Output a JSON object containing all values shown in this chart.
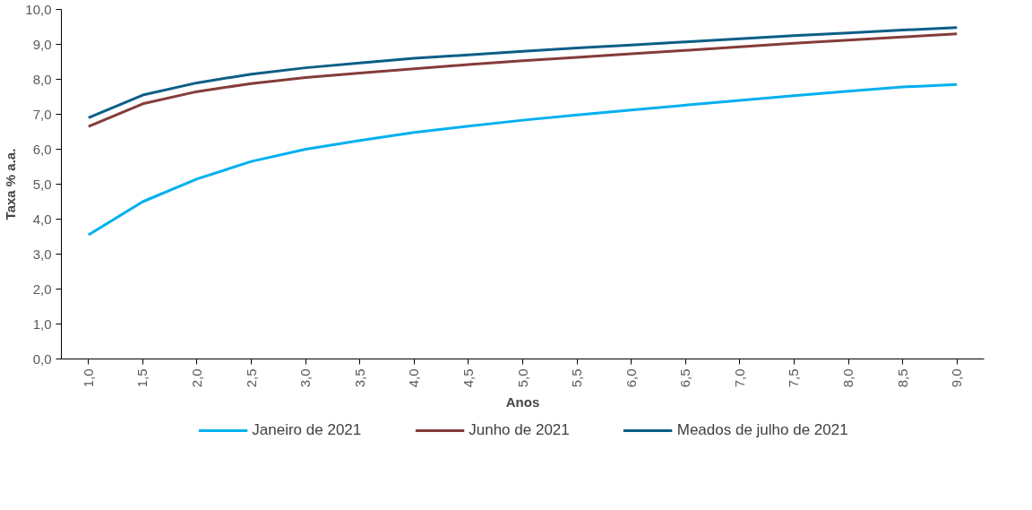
{
  "chart_data": {
    "type": "line",
    "xlabel": "Anos",
    "ylabel": "Taxa % a.a.",
    "x": [
      1.0,
      1.5,
      2.0,
      2.5,
      3.0,
      3.5,
      4.0,
      4.5,
      5.0,
      5.5,
      6.0,
      6.5,
      7.0,
      7.5,
      8.0,
      8.5,
      9.0
    ],
    "xlim": [
      0.75,
      9.25
    ],
    "xticks": [
      {
        "value": 1.0,
        "label": "1,0"
      },
      {
        "value": 1.5,
        "label": "1,5"
      },
      {
        "value": 2.0,
        "label": "2,0"
      },
      {
        "value": 2.5,
        "label": "2,5"
      },
      {
        "value": 3.0,
        "label": "3,0"
      },
      {
        "value": 3.5,
        "label": "3,5"
      },
      {
        "value": 4.0,
        "label": "4,0"
      },
      {
        "value": 4.5,
        "label": "4,5"
      },
      {
        "value": 5.0,
        "label": "5,0"
      },
      {
        "value": 5.5,
        "label": "5,5"
      },
      {
        "value": 6.0,
        "label": "6,0"
      },
      {
        "value": 6.5,
        "label": "6,5"
      },
      {
        "value": 7.0,
        "label": "7,0"
      },
      {
        "value": 7.5,
        "label": "7,5"
      },
      {
        "value": 8.0,
        "label": "8,0"
      },
      {
        "value": 8.5,
        "label": "8,5"
      },
      {
        "value": 9.0,
        "label": "9,0"
      }
    ],
    "ylim": [
      0,
      10
    ],
    "yticks": [
      {
        "value": 0,
        "label": "0,0"
      },
      {
        "value": 1,
        "label": "1,0"
      },
      {
        "value": 2,
        "label": "2,0"
      },
      {
        "value": 3,
        "label": "3,0"
      },
      {
        "value": 4,
        "label": "4,0"
      },
      {
        "value": 5,
        "label": "5,0"
      },
      {
        "value": 6,
        "label": "6,0"
      },
      {
        "value": 7,
        "label": "7,0"
      },
      {
        "value": 8,
        "label": "8,0"
      },
      {
        "value": 9,
        "label": "9,0"
      },
      {
        "value": 10,
        "label": "10,0"
      }
    ],
    "grid": false,
    "legend": "bottom",
    "line_style": "solid",
    "marker": "none",
    "series": [
      {
        "name": "Janeiro de 2021",
        "color": "#00b0f0",
        "values": [
          3.55,
          4.5,
          5.15,
          5.65,
          6.0,
          6.25,
          6.48,
          6.66,
          6.83,
          6.98,
          7.12,
          7.26,
          7.4,
          7.53,
          7.66,
          7.78,
          7.85
        ]
      },
      {
        "name": "Junho de 2021",
        "color": "#843c39",
        "values": [
          6.65,
          7.3,
          7.65,
          7.88,
          8.05,
          8.18,
          8.3,
          8.42,
          8.53,
          8.63,
          8.73,
          8.83,
          8.93,
          9.03,
          9.12,
          9.21,
          9.3
        ]
      },
      {
        "name": "Meados de julho de 2021",
        "color": "#0b5e86",
        "values": [
          6.9,
          7.55,
          7.9,
          8.15,
          8.33,
          8.47,
          8.6,
          8.7,
          8.8,
          8.9,
          8.98,
          9.07,
          9.16,
          9.25,
          9.33,
          9.41,
          9.48
        ]
      }
    ]
  }
}
